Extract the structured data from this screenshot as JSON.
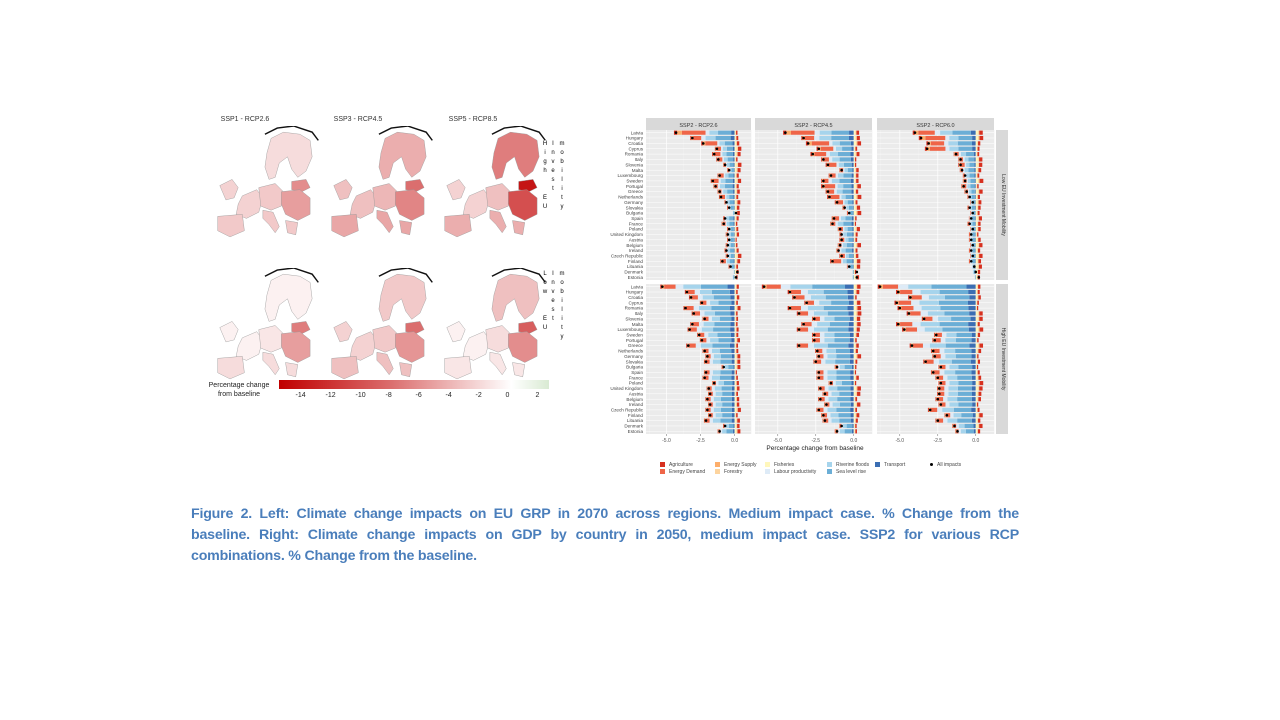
{
  "left_figure": {
    "scenarios": [
      "SSP1 - RCP2.6",
      "SSP3 - RCP4.5",
      "SSP5 - RCP8.5"
    ],
    "row_labels": [
      {
        "col1": "High EU",
        "col2": "Invest",
        "col3": "mobility"
      },
      {
        "col1": "Low EU",
        "col2": "Invest",
        "col3": "mobility"
      }
    ],
    "colorbar": {
      "label_line1": "Percentage change",
      "label_line2": "from baseline",
      "ticks": [
        "-14",
        "-12",
        "-10",
        "-8",
        "-6",
        "-4",
        "-2",
        "0",
        "2"
      ],
      "range": [
        -15.5,
        2.5
      ],
      "colors": {
        "low": "#c00000",
        "mid": "#ffffff",
        "high": "#d9ead3"
      }
    },
    "region_intensity": {
      "High EU Invest mobility": {
        "SSP1 - RCP2.6": {
          "nordic": -1.5,
          "baltic": -6,
          "central": -2.5,
          "south": -2.5,
          "east": -5,
          "west": -2
        },
        "SSP3 - RCP4.5": {
          "nordic": -4,
          "baltic": -8,
          "central": -3.5,
          "south": -4.5,
          "east": -6.5,
          "west": -3
        },
        "SSP5 - RCP8.5": {
          "nordic": -7,
          "baltic": -14,
          "central": -3,
          "south": -4,
          "east": -10,
          "west": -2
        }
      },
      "Low EU Invest mobility": {
        "SSP1 - RCP2.6": {
          "nordic": -0.5,
          "baltic": -7,
          "central": -1,
          "south": -1.5,
          "east": -5,
          "west": -0.5
        },
        "SSP3 - RCP4.5": {
          "nordic": -2.5,
          "baltic": -8,
          "central": -2.5,
          "south": -3,
          "east": -5.5,
          "west": -2
        },
        "SSP5 - RCP8.5": {
          "nordic": -3,
          "baltic": -9,
          "central": -1.5,
          "south": -1,
          "east": -6,
          "west": -0.5
        }
      }
    }
  },
  "chart_data": {
    "type": "bar",
    "subtype": "stacked horizontal bar with point overlay, faceted",
    "xlabel": "Percentage change from baseline",
    "xlim": [
      -6.5,
      1.2
    ],
    "xticks": [
      "-5.0",
      "-2.5",
      "0.0"
    ],
    "xtick_values": [
      -5.0,
      -2.5,
      0.0
    ],
    "grid": true,
    "facet_columns": [
      "SSP2 - RCP2.6",
      "SSP2 - RCP4.5",
      "SSP2 - RCP6.0"
    ],
    "facet_rows": [
      "Low EU Investment Mobility",
      "High EU Investment Mobility"
    ],
    "categories": [
      "Latvia",
      "Hungary",
      "Croatia",
      "Cyprus",
      "Romania",
      "Italy",
      "Slovenia",
      "Malta",
      "Luxembourg",
      "Sweden",
      "Portugal",
      "Greece",
      "Netherlands",
      "Germany",
      "Slovakia",
      "Bulgaria",
      "Spain",
      "France",
      "Poland",
      "United Kingdom",
      "Austria",
      "Belgium",
      "Ireland",
      "Czech Republic",
      "Finland",
      "Lituania",
      "Denmark",
      "Estonia"
    ],
    "legend": [
      {
        "name": "Agriculture",
        "color": "#d7301f"
      },
      {
        "name": "Energy Demand",
        "color": "#ef6548"
      },
      {
        "name": "Energy Supply",
        "color": "#fdae6b"
      },
      {
        "name": "Forestry",
        "color": "#fdd49e"
      },
      {
        "name": "Fisheries",
        "color": "#fff7bc"
      },
      {
        "name": "Labour productivity",
        "color": "#deebf7"
      },
      {
        "name": "Riverine floods",
        "color": "#a6d4ec"
      },
      {
        "name": "Sea level rise",
        "color": "#6baed6"
      },
      {
        "name": "Transport",
        "color": "#3b6eb3"
      },
      {
        "name": "All impacts",
        "color": "#000000"
      }
    ],
    "legend_position": "bottom",
    "all_impacts": {
      "Low EU Investment Mobility": {
        "SSP2 - RCP2.6": [
          -4.3,
          -3.1,
          -2.3,
          -1.3,
          -1.5,
          -1.2,
          -0.7,
          -0.4,
          -1.1,
          -1.6,
          -1.4,
          -1.1,
          -1.0,
          -0.6,
          -0.4,
          0.1,
          -0.7,
          -0.8,
          -0.4,
          -0.5,
          -0.4,
          -0.5,
          -0.6,
          -0.5,
          -0.9,
          -0.3,
          0.2,
          0.1
        ],
        "SSP2 - RCP4.5": [
          -4.5,
          -3.3,
          -3.0,
          -2.3,
          -2.7,
          -2.0,
          -1.7,
          -0.8,
          -1.5,
          -2.0,
          -2.0,
          -1.7,
          -1.6,
          -1.1,
          -0.6,
          -0.3,
          -1.3,
          -1.4,
          -0.9,
          -0.8,
          -0.8,
          -0.9,
          -1.0,
          -0.8,
          -1.4,
          -0.3,
          0.2,
          0.2
        ],
        "SSP2 - RCP6.0": [
          -4.0,
          -3.6,
          -3.1,
          -3.2,
          -1.3,
          -1.0,
          -1.0,
          -0.9,
          -0.7,
          -0.7,
          -0.8,
          -0.6,
          -0.4,
          -0.2,
          -0.4,
          -0.2,
          -0.3,
          -0.4,
          -0.2,
          -0.3,
          -0.3,
          -0.2,
          -0.3,
          -0.2,
          -0.3,
          -0.1,
          0.0,
          0.2
        ]
      },
      "High EU Investment Mobility": {
        "SSP2 - RCP2.6": [
          -5.3,
          -3.5,
          -3.2,
          -2.4,
          -3.6,
          -3.0,
          -2.2,
          -3.1,
          -3.3,
          -2.6,
          -2.4,
          -3.4,
          -2.2,
          -2.0,
          -2.1,
          -0.8,
          -2.1,
          -2.2,
          -1.5,
          -1.9,
          -1.8,
          -2.0,
          -1.8,
          -2.0,
          -1.8,
          -2.1,
          -0.7,
          -1.1
        ],
        "SSP2 - RCP4.5": [
          -5.9,
          -4.2,
          -3.9,
          -3.1,
          -4.2,
          -3.6,
          -2.6,
          -3.3,
          -3.6,
          -2.6,
          -2.6,
          -3.6,
          -2.4,
          -2.3,
          -2.5,
          -1.1,
          -2.3,
          -2.3,
          -1.5,
          -2.2,
          -1.9,
          -2.2,
          -1.8,
          -2.3,
          -2.0,
          -1.9,
          -0.8,
          -1.1
        ],
        "SSP2 - RCP6.0": [
          -6.3,
          -5.1,
          -4.3,
          -5.2,
          -5.0,
          -4.4,
          -3.4,
          -5.1,
          -4.7,
          -2.6,
          -2.7,
          -4.2,
          -2.8,
          -2.7,
          -3.3,
          -2.3,
          -2.8,
          -2.5,
          -2.3,
          -2.4,
          -2.4,
          -2.5,
          -2.3,
          -3.0,
          -1.9,
          -2.5,
          -1.4,
          -1.2
        ]
      }
    }
  },
  "caption": {
    "line1": "Figure 2. Left: Climate change impacts on EU GRP in 2070 across regions. Medium impact case. % Change from the",
    "line2": "baseline. Right: Climate change impacts on GDP by country in 2050, medium impact case. SSP2 for various RCP",
    "line3": "combinations. % Change from the baseline."
  }
}
